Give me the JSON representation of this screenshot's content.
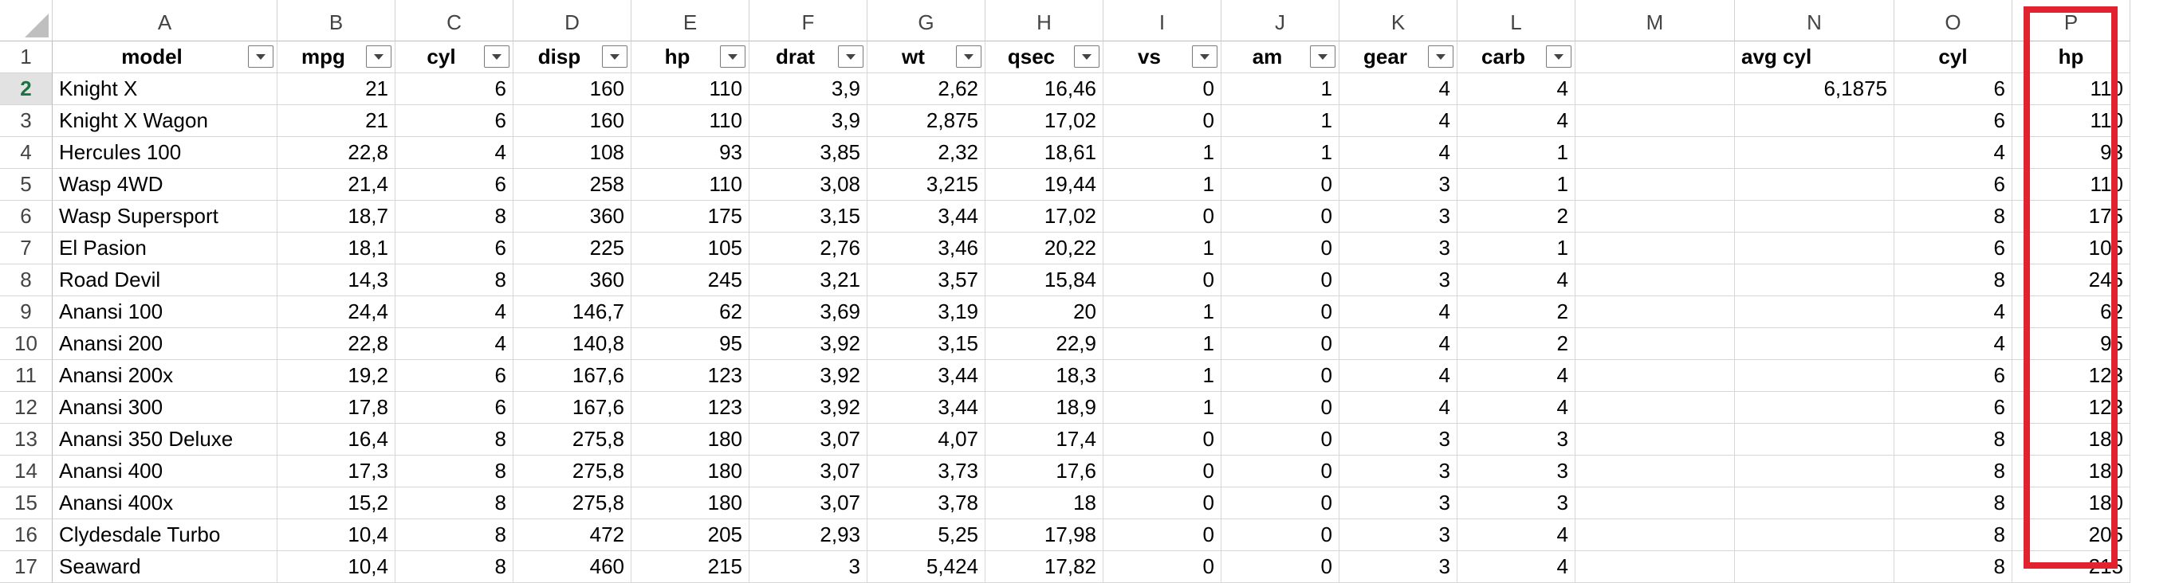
{
  "columns": [
    "A",
    "B",
    "C",
    "D",
    "E",
    "F",
    "G",
    "H",
    "I",
    "J",
    "K",
    "L",
    "M",
    "N",
    "O",
    "P"
  ],
  "row_numbers": [
    "1",
    "2",
    "3",
    "4",
    "5",
    "6",
    "7",
    "8",
    "9",
    "10",
    "11",
    "12",
    "13",
    "14",
    "15",
    "16",
    "17"
  ],
  "headers": {
    "model": "model",
    "mpg": "mpg",
    "cyl": "cyl",
    "disp": "disp",
    "hp": "hp",
    "drat": "drat",
    "wt": "wt",
    "qsec": "qsec",
    "vs": "vs",
    "am": "am",
    "gear": "gear",
    "carb": "carb",
    "avg_cyl": "avg cyl",
    "cyl2": "cyl",
    "hp2": "hp"
  },
  "rows": [
    [
      "Knight X",
      "21",
      "6",
      "160",
      "110",
      "3,9",
      "2,62",
      "16,46",
      "0",
      "1",
      "4",
      "4",
      "",
      "6,1875",
      "6",
      "110"
    ],
    [
      "Knight X Wagon",
      "21",
      "6",
      "160",
      "110",
      "3,9",
      "2,875",
      "17,02",
      "0",
      "1",
      "4",
      "4",
      "",
      "",
      "6",
      "110"
    ],
    [
      "Hercules 100",
      "22,8",
      "4",
      "108",
      "93",
      "3,85",
      "2,32",
      "18,61",
      "1",
      "1",
      "4",
      "1",
      "",
      "",
      "4",
      "93"
    ],
    [
      "Wasp 4WD",
      "21,4",
      "6",
      "258",
      "110",
      "3,08",
      "3,215",
      "19,44",
      "1",
      "0",
      "3",
      "1",
      "",
      "",
      "6",
      "110"
    ],
    [
      "Wasp Supersport",
      "18,7",
      "8",
      "360",
      "175",
      "3,15",
      "3,44",
      "17,02",
      "0",
      "0",
      "3",
      "2",
      "",
      "",
      "8",
      "175"
    ],
    [
      "El Pasion",
      "18,1",
      "6",
      "225",
      "105",
      "2,76",
      "3,46",
      "20,22",
      "1",
      "0",
      "3",
      "1",
      "",
      "",
      "6",
      "105"
    ],
    [
      "Road Devil",
      "14,3",
      "8",
      "360",
      "245",
      "3,21",
      "3,57",
      "15,84",
      "0",
      "0",
      "3",
      "4",
      "",
      "",
      "8",
      "245"
    ],
    [
      "Anansi 100",
      "24,4",
      "4",
      "146,7",
      "62",
      "3,69",
      "3,19",
      "20",
      "1",
      "0",
      "4",
      "2",
      "",
      "",
      "4",
      "62"
    ],
    [
      "Anansi 200",
      "22,8",
      "4",
      "140,8",
      "95",
      "3,92",
      "3,15",
      "22,9",
      "1",
      "0",
      "4",
      "2",
      "",
      "",
      "4",
      "95"
    ],
    [
      "Anansi 200x",
      "19,2",
      "6",
      "167,6",
      "123",
      "3,92",
      "3,44",
      "18,3",
      "1",
      "0",
      "4",
      "4",
      "",
      "",
      "6",
      "123"
    ],
    [
      "Anansi 300",
      "17,8",
      "6",
      "167,6",
      "123",
      "3,92",
      "3,44",
      "18,9",
      "1",
      "0",
      "4",
      "4",
      "",
      "",
      "6",
      "123"
    ],
    [
      "Anansi 350 Deluxe",
      "16,4",
      "8",
      "275,8",
      "180",
      "3,07",
      "4,07",
      "17,4",
      "0",
      "0",
      "3",
      "3",
      "",
      "",
      "8",
      "180"
    ],
    [
      "Anansi 400",
      "17,3",
      "8",
      "275,8",
      "180",
      "3,07",
      "3,73",
      "17,6",
      "0",
      "0",
      "3",
      "3",
      "",
      "",
      "8",
      "180"
    ],
    [
      "Anansi 400x",
      "15,2",
      "8",
      "275,8",
      "180",
      "3,07",
      "3,78",
      "18",
      "0",
      "0",
      "3",
      "3",
      "",
      "",
      "8",
      "180"
    ],
    [
      "Clydesdale Turbo",
      "10,4",
      "8",
      "472",
      "205",
      "2,93",
      "5,25",
      "17,98",
      "0",
      "0",
      "3",
      "4",
      "",
      "",
      "8",
      "205"
    ],
    [
      "Seaward",
      "10,4",
      "8",
      "460",
      "215",
      "3",
      "5,424",
      "17,82",
      "0",
      "0",
      "3",
      "4",
      "",
      "",
      "8",
      "215"
    ]
  ],
  "colors": {
    "highlight": "#e0232e",
    "active_row": "#1e7145"
  }
}
